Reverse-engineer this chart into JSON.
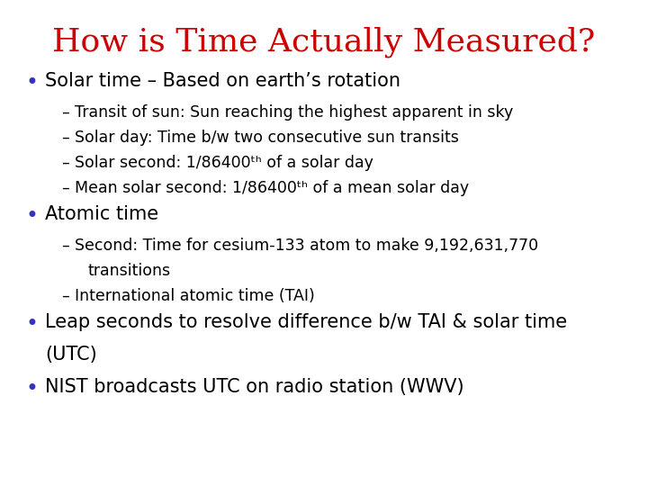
{
  "title": "How is Time Actually Measured?",
  "title_color": "#cc0000",
  "title_fontsize": 26,
  "background_color": "#ffffff",
  "bullet_color": "#3333bb",
  "text_color": "#000000",
  "bullet_fontsize": 15,
  "sub_bullet_fontsize": 12.5,
  "content": [
    {
      "type": "bullet",
      "text": "Solar time – Based on earth’s rotation",
      "level": 0
    },
    {
      "type": "sub",
      "text": "Transit of sun: Sun reaching the highest apparent in sky",
      "level": 1
    },
    {
      "type": "sub",
      "text": "Solar day: Time b/w two consecutive sun transits",
      "level": 1
    },
    {
      "type": "sub",
      "text": "Solar second: 1/86400ᵗʰ of a solar day",
      "level": 1
    },
    {
      "type": "sub",
      "text": "Mean solar second: 1/86400ᵗʰ of a mean solar day",
      "level": 1
    },
    {
      "type": "bullet",
      "text": "Atomic time",
      "level": 0
    },
    {
      "type": "sub",
      "text": "Second: Time for cesium-133 atom to make 9,192,631,770",
      "level": 1
    },
    {
      "type": "sub2",
      "text": "transitions",
      "level": 1
    },
    {
      "type": "sub",
      "text": "International atomic time (TAI)",
      "level": 1
    },
    {
      "type": "bullet",
      "text": "Leap seconds to resolve difference b/w TAI & solar time",
      "level": 0
    },
    {
      "type": "bullet_cont",
      "text": "(UTC)",
      "level": 0
    },
    {
      "type": "bullet",
      "text": "NIST broadcasts UTC on radio station (WWV)",
      "level": 0
    }
  ]
}
